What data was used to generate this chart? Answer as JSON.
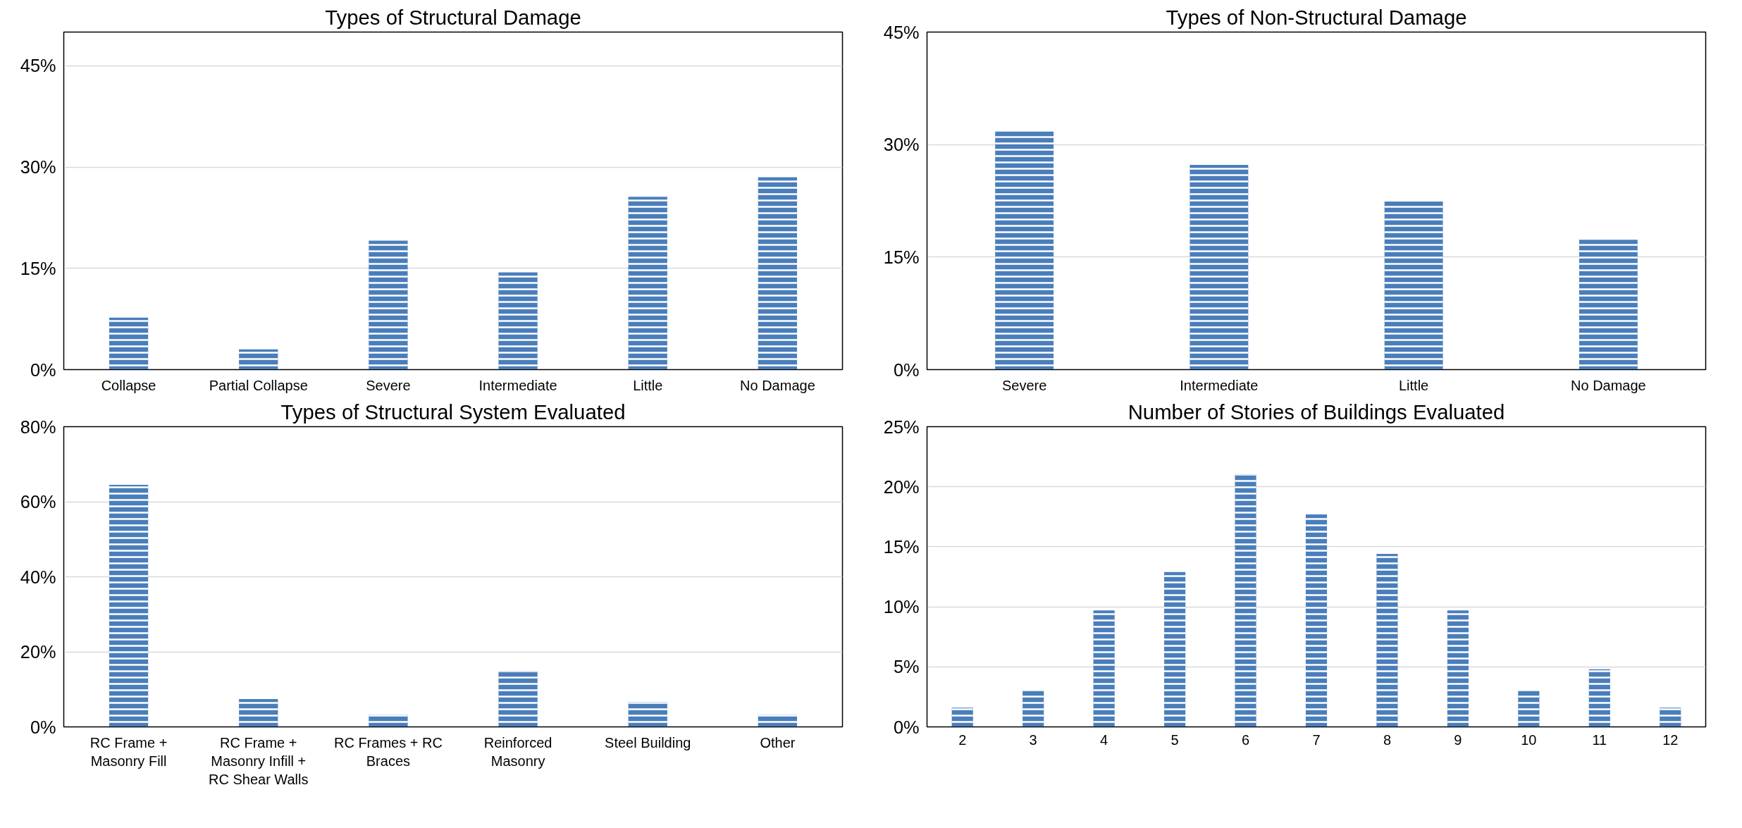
{
  "chart_data": [
    {
      "type": "bar",
      "title": "Types of Structural Damage",
      "categories": [
        "Collapse",
        "Partial Collapse",
        "Severe",
        "Intermediate",
        "Little",
        "No Damage"
      ],
      "values": [
        7.7,
        3.0,
        19.1,
        14.4,
        25.6,
        28.5
      ],
      "color": "#4a7ebb",
      "ylim": [
        0,
        50
      ],
      "yticks": [
        {
          "value": 0,
          "label": "0%"
        },
        {
          "value": 15,
          "label": "15%"
        },
        {
          "value": 30,
          "label": "30%"
        },
        {
          "value": 45,
          "label": "45%"
        }
      ],
      "grid": "y"
    },
    {
      "type": "bar",
      "title": "Types of Non-Structural Damage",
      "categories": [
        "Severe",
        "Intermediate",
        "Little",
        "No Damage"
      ],
      "values": [
        31.8,
        27.3,
        22.4,
        17.3
      ],
      "color": "#4a7ebb",
      "ylim": [
        0,
        45
      ],
      "yticks": [
        {
          "value": 0,
          "label": "0%"
        },
        {
          "value": 15,
          "label": "15%"
        },
        {
          "value": 30,
          "label": "30%"
        },
        {
          "value": 45,
          "label": "45%"
        }
      ],
      "grid": "y"
    },
    {
      "type": "bar",
      "title": "Types of Structural System Evaluated",
      "categories": [
        "RC Frame + Masonry Fill",
        "RC Frame + Masonry Infill + RC Shear Walls",
        "RC Frames + RC Braces",
        "Reinforced Masonry",
        "Steel Building",
        "Other"
      ],
      "values": [
        64.5,
        7.4,
        3.3,
        14.8,
        6.6,
        3.3
      ],
      "color": "#4a7ebb",
      "ylim": [
        0,
        80
      ],
      "yticks": [
        {
          "value": 0,
          "label": "0%"
        },
        {
          "value": 20,
          "label": "20%"
        },
        {
          "value": 40,
          "label": "40%"
        },
        {
          "value": 60,
          "label": "60%"
        },
        {
          "value": 80,
          "label": "80%"
        }
      ],
      "grid": "y"
    },
    {
      "type": "bar",
      "title": "Number of Stories of Buildings Evaluated",
      "categories": [
        "2",
        "3",
        "4",
        "5",
        "6",
        "7",
        "8",
        "9",
        "10",
        "11",
        "12"
      ],
      "values": [
        1.6,
        3.0,
        9.7,
        12.9,
        21.0,
        17.7,
        14.4,
        9.7,
        3.0,
        4.8,
        1.6
      ],
      "color": "#4a7ebb",
      "ylim": [
        0,
        25
      ],
      "yticks": [
        {
          "value": 0,
          "label": "0%"
        },
        {
          "value": 5,
          "label": "5%"
        },
        {
          "value": 10,
          "label": "10%"
        },
        {
          "value": 15,
          "label": "15%"
        },
        {
          "value": 20,
          "label": "20%"
        },
        {
          "value": 25,
          "label": "25%"
        }
      ],
      "grid": "y"
    }
  ]
}
